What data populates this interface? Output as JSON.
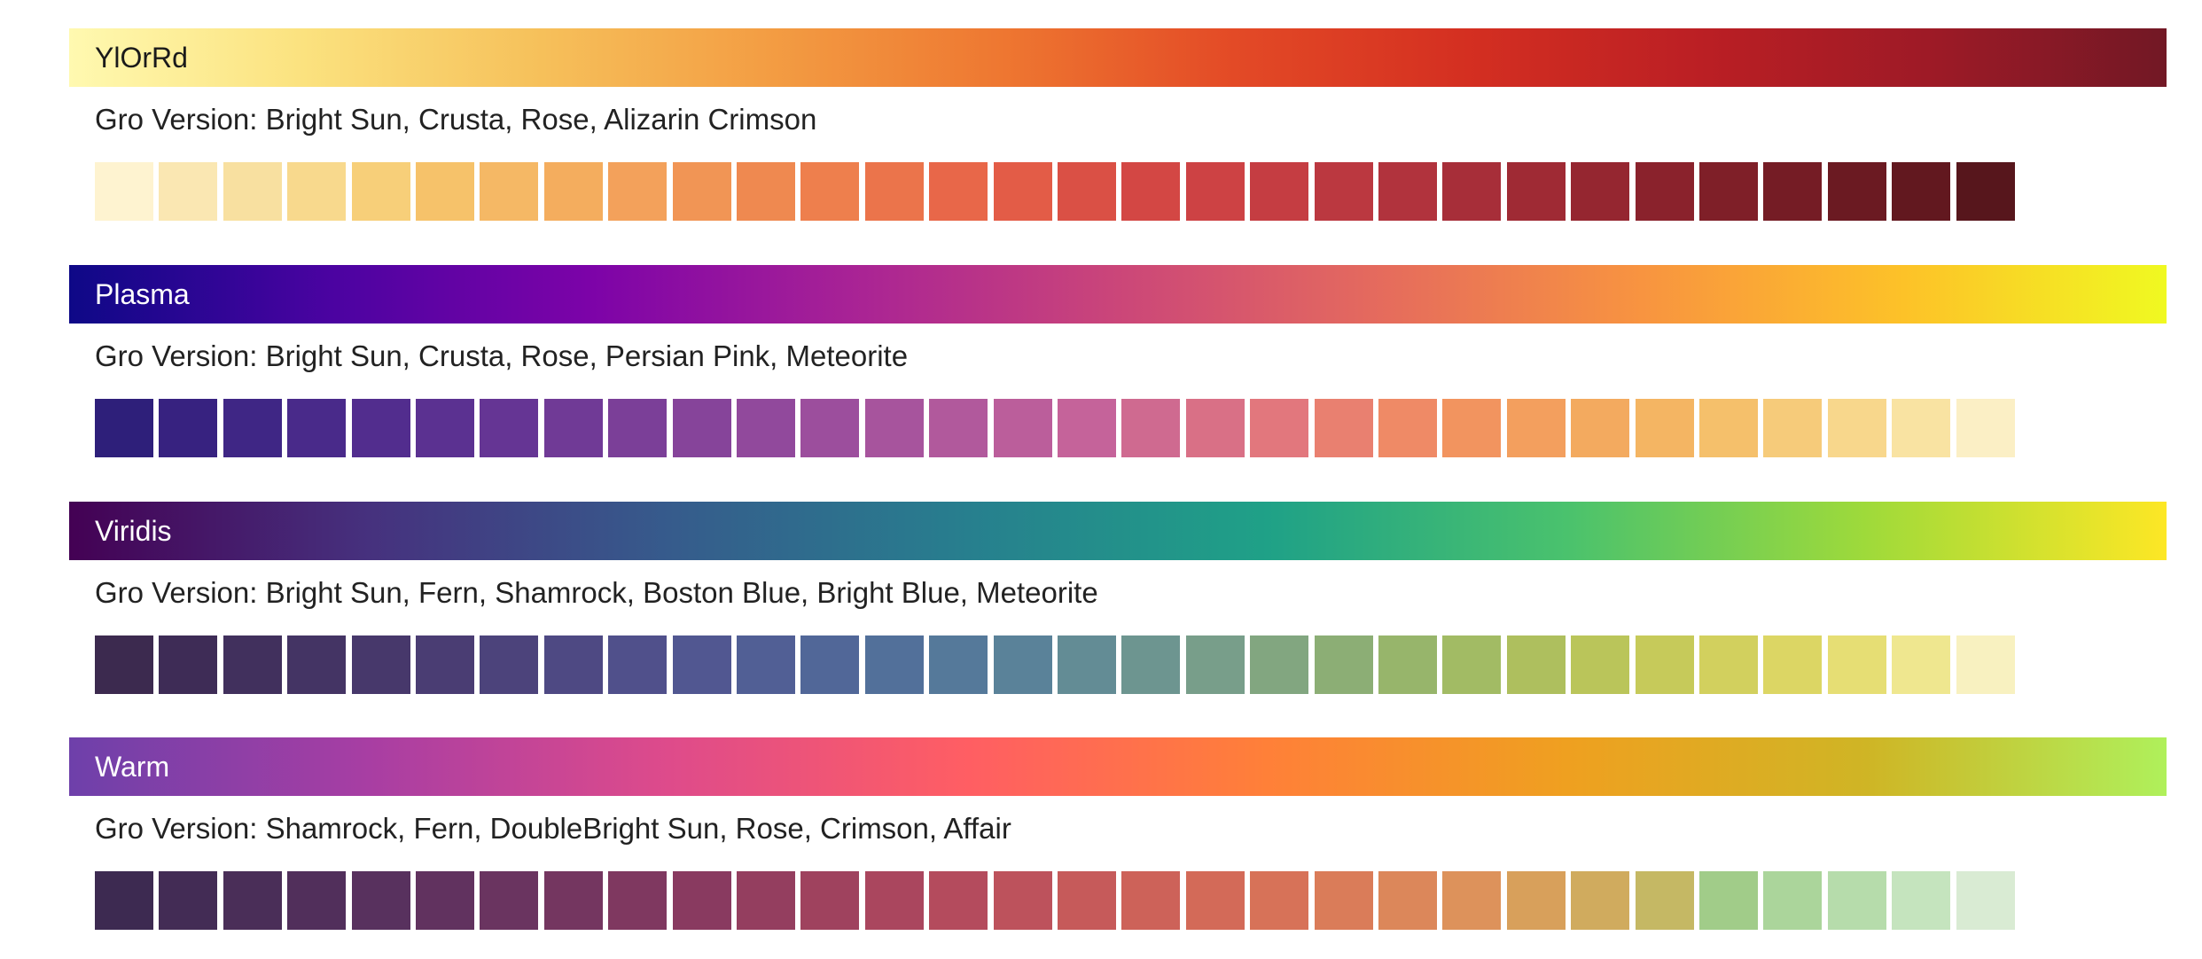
{
  "palettes": [
    {
      "name": "YlOrRd",
      "name_color": "#1a1a1a",
      "gradient": [
        "#fff9b0",
        "#fbe27f",
        "#f6c15b",
        "#f39d43",
        "#ee7731",
        "#e34a26",
        "#d42f21",
        "#bb1f24",
        "#9d1a26",
        "#721825"
      ],
      "gro_label": "Gro Version: Bright Sun, Crusta, Rose, Alizarin Crimson",
      "swatches": [
        "#fef3d0",
        "#fae7b2",
        "#f8e0a0",
        "#f8d98d",
        "#f7cf79",
        "#f6c26a",
        "#f5b865",
        "#f4ad5e",
        "#f3a15b",
        "#f19555",
        "#ef8950",
        "#ee7f4d",
        "#eb744b",
        "#e86749",
        "#e35c47",
        "#da5045",
        "#d34744",
        "#cd4244",
        "#c53d42",
        "#bb3840",
        "#b1333d",
        "#a72e39",
        "#9f2a34",
        "#952630",
        "#8a222c",
        "#7f1f28",
        "#751c25",
        "#6b1a22",
        "#62181f",
        "#57161c"
      ]
    },
    {
      "name": "Plasma",
      "name_color": "#ffffff",
      "gradient": [
        "#0e0887",
        "#4b03a1",
        "#7d03a8",
        "#a92395",
        "#cb4679",
        "#e56b5d",
        "#f89440",
        "#fdc228",
        "#f0f921"
      ],
      "gro_label": "Gro Version: Bright Sun, Crusta, Rose, Persian Pink, Meteorite",
      "swatches": [
        "#2e1f7a",
        "#372280",
        "#3f2685",
        "#492a8a",
        "#522d8e",
        "#5b3191",
        "#653594",
        "#703a96",
        "#7b3f98",
        "#86449a",
        "#91499c",
        "#9c4e9d",
        "#a7549d",
        "#b1599c",
        "#bb5e9b",
        "#c5639a",
        "#cf6a90",
        "#d97086",
        "#e2777d",
        "#e98070",
        "#ef8a66",
        "#f2945f",
        "#f39f5e",
        "#f3aa5f",
        "#f4b563",
        "#f5c06b",
        "#f6cb7a",
        "#f8d78c",
        "#f9e3a2",
        "#fbefc5"
      ]
    },
    {
      "name": "Viridis",
      "name_color": "#ffffff",
      "gradient": [
        "#440154",
        "#46317e",
        "#365b8c",
        "#277f8e",
        "#1fa187",
        "#4ac26d",
        "#9fda3a",
        "#fde725"
      ],
      "gro_label": "Gro Version: Bright Sun, Fern, Shamrock, Boston Blue, Bright Blue, Meteorite",
      "swatches": [
        "#3c2a4f",
        "#3e2c56",
        "#41305d",
        "#443464",
        "#47386b",
        "#4a3d73",
        "#4c437b",
        "#4e4983",
        "#50508b",
        "#515791",
        "#515f95",
        "#516798",
        "#52709a",
        "#55799a",
        "#5a8299",
        "#638c95",
        "#6d9590",
        "#789e8a",
        "#82a680",
        "#8cae75",
        "#97b56b",
        "#a2bb64",
        "#aebf5e",
        "#bac55a",
        "#c6ca5a",
        "#d2d05e",
        "#dcd664",
        "#e6de74",
        "#efe78f",
        "#f8f1c0"
      ]
    },
    {
      "name": "Warm",
      "name_color": "#ffffff",
      "gradient": [
        "#6e40aa",
        "#a83ea3",
        "#de4b8b",
        "#ff5e63",
        "#ff8038",
        "#efa020",
        "#cfb525",
        "#aff05b"
      ],
      "gro_label": "Gro Version: Shamrock, Fern, DoubleBright Sun, Rose, Crimson, Affair",
      "swatches": [
        "#3d2a51",
        "#432c55",
        "#4a2e58",
        "#512f5b",
        "#58315e",
        "#61325f",
        "#6a3460",
        "#743660",
        "#7f3860",
        "#893a60",
        "#943e5f",
        "#9f425e",
        "#aa465e",
        "#b44b5d",
        "#bd525c",
        "#c65a5a",
        "#cd6259",
        "#d36a58",
        "#d77258",
        "#da7c59",
        "#dc875a",
        "#dd925b",
        "#d8a05b",
        "#d0ab5e",
        "#c5b864",
        "#a1cc89",
        "#abd59b",
        "#b6dcab",
        "#c5e4be",
        "#d9ebd3",
        "#edf5e9"
      ]
    }
  ]
}
